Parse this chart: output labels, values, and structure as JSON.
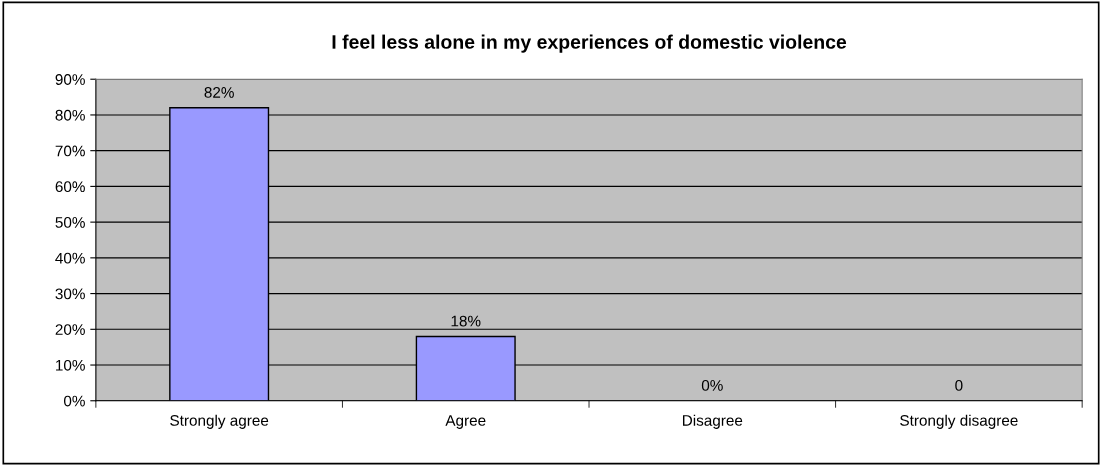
{
  "chart_data": {
    "type": "bar",
    "title": "I feel less alone in my experiences of domestic violence",
    "categories": [
      "Strongly agree",
      "Agree",
      "Disagree",
      "Strongly disagree"
    ],
    "values": [
      82,
      18,
      0,
      0
    ],
    "color": "#9999ff",
    "value_labels": [
      "82%",
      "18%",
      "0%",
      "0"
    ],
    "ylim": [
      0,
      90
    ],
    "yticks": [
      {
        "value": 0,
        "label": "0%"
      },
      {
        "value": 10,
        "label": "10%"
      },
      {
        "value": 20,
        "label": "20%"
      },
      {
        "value": 30,
        "label": "30%"
      },
      {
        "value": 40,
        "label": "40%"
      },
      {
        "value": 50,
        "label": "50%"
      },
      {
        "value": 60,
        "label": "60%"
      },
      {
        "value": 70,
        "label": "70%"
      },
      {
        "value": 80,
        "label": "80%"
      },
      {
        "value": 90,
        "label": "90%"
      }
    ],
    "grid": "y",
    "legend": false
  }
}
